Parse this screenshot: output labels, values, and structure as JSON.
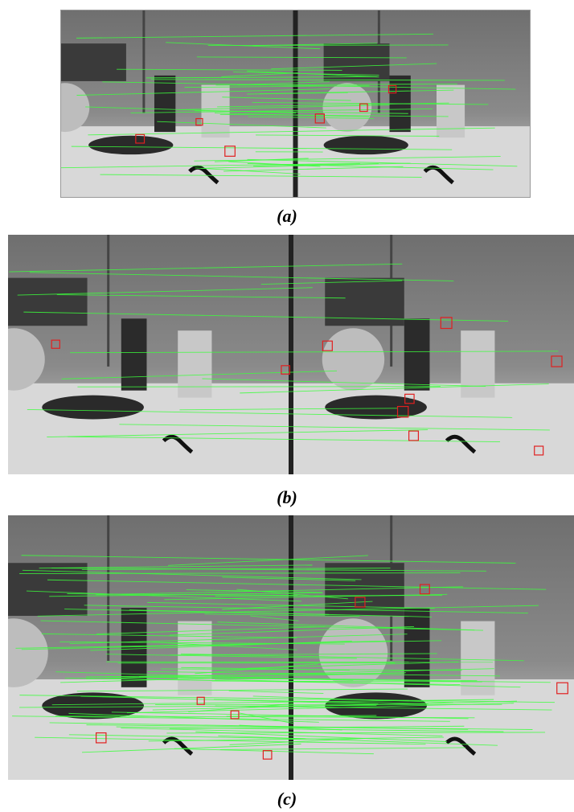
{
  "figures": [
    {
      "caption": "(a)"
    },
    {
      "caption": "(b)"
    },
    {
      "caption": "(c)"
    }
  ]
}
